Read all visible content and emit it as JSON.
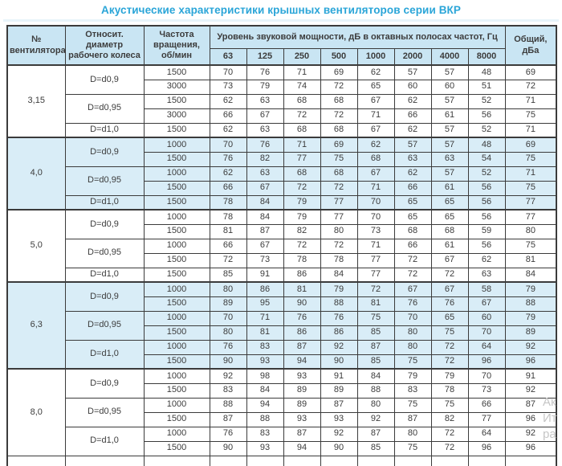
{
  "title": "Акустические характеристики крышных вентиляторов серии ВКР",
  "colors": {
    "title_accent": "#2aa5d8",
    "header_bg": "#c9e5f3",
    "shaded_row_bg": "#d9edf7",
    "border": "#3b3b3b",
    "text": "#3c3c3c"
  },
  "table": {
    "headers": {
      "fan_number": "№ вентилятора",
      "diameter": "Относит. диаметр рабочего колеса",
      "speed": "Частота вращения, об/мин",
      "spl_group": "Уровень звуковой мощности, дБ в октавных полосах частот, Гц",
      "octave_bands": [
        "63",
        "125",
        "250",
        "500",
        "1000",
        "2000",
        "4000",
        "8000"
      ],
      "total": "Общий, дБа"
    },
    "groups": [
      {
        "fan": "3,15",
        "shaded": false,
        "blocks": [
          {
            "diameter": "D=d0,9",
            "rows": [
              {
                "speed": "1500",
                "levels": [
                  70,
                  76,
                  71,
                  69,
                  62,
                  57,
                  57,
                  48
                ],
                "total": 69
              },
              {
                "speed": "3000",
                "levels": [
                  73,
                  79,
                  74,
                  72,
                  65,
                  60,
                  60,
                  51
                ],
                "total": 72
              }
            ]
          },
          {
            "diameter": "D=d0,95",
            "rows": [
              {
                "speed": "1500",
                "levels": [
                  62,
                  63,
                  68,
                  68,
                  67,
                  62,
                  57,
                  52
                ],
                "total": 71
              },
              {
                "speed": "3000",
                "levels": [
                  66,
                  67,
                  72,
                  72,
                  71,
                  66,
                  61,
                  56
                ],
                "total": 75
              }
            ]
          },
          {
            "diameter": "D=d1,0",
            "rows": [
              {
                "speed": "1500",
                "levels": [
                  62,
                  63,
                  68,
                  68,
                  67,
                  62,
                  57,
                  52
                ],
                "total": 71
              }
            ]
          }
        ]
      },
      {
        "fan": "4,0",
        "shaded": true,
        "blocks": [
          {
            "diameter": "D=d0,9",
            "rows": [
              {
                "speed": "1000",
                "levels": [
                  70,
                  76,
                  71,
                  69,
                  62,
                  57,
                  57,
                  48
                ],
                "total": 69
              },
              {
                "speed": "1500",
                "levels": [
                  76,
                  82,
                  77,
                  75,
                  68,
                  63,
                  63,
                  54
                ],
                "total": 75
              }
            ]
          },
          {
            "diameter": "D=d0,95",
            "rows": [
              {
                "speed": "1000",
                "levels": [
                  62,
                  63,
                  68,
                  68,
                  67,
                  62,
                  57,
                  52
                ],
                "total": 71
              },
              {
                "speed": "1500",
                "levels": [
                  66,
                  67,
                  72,
                  72,
                  71,
                  66,
                  61,
                  56
                ],
                "total": 75
              }
            ]
          },
          {
            "diameter": "D=d1,0",
            "rows": [
              {
                "speed": "1500",
                "levels": [
                  78,
                  84,
                  79,
                  77,
                  70,
                  65,
                  65,
                  56
                ],
                "total": 77
              }
            ]
          }
        ]
      },
      {
        "fan": "5,0",
        "shaded": false,
        "blocks": [
          {
            "diameter": "D=d0,9",
            "rows": [
              {
                "speed": "1000",
                "levels": [
                  78,
                  84,
                  79,
                  77,
                  70,
                  65,
                  65,
                  56
                ],
                "total": 77
              },
              {
                "speed": "1500",
                "levels": [
                  81,
                  87,
                  82,
                  80,
                  73,
                  68,
                  68,
                  59
                ],
                "total": 80
              }
            ]
          },
          {
            "diameter": "D=d0,95",
            "rows": [
              {
                "speed": "1000",
                "levels": [
                  66,
                  67,
                  72,
                  72,
                  71,
                  66,
                  61,
                  56
                ],
                "total": 75
              },
              {
                "speed": "1500",
                "levels": [
                  72,
                  73,
                  78,
                  78,
                  77,
                  72,
                  67,
                  62
                ],
                "total": 81
              }
            ]
          },
          {
            "diameter": "D=d1,0",
            "rows": [
              {
                "speed": "1500",
                "levels": [
                  85,
                  91,
                  86,
                  84,
                  77,
                  72,
                  72,
                  63
                ],
                "total": 84
              }
            ]
          }
        ]
      },
      {
        "fan": "6,3",
        "shaded": true,
        "blocks": [
          {
            "diameter": "D=d0,9",
            "rows": [
              {
                "speed": "1000",
                "levels": [
                  80,
                  86,
                  81,
                  79,
                  72,
                  67,
                  67,
                  58
                ],
                "total": 79
              },
              {
                "speed": "1500",
                "levels": [
                  89,
                  95,
                  90,
                  88,
                  81,
                  76,
                  76,
                  67
                ],
                "total": 88
              }
            ]
          },
          {
            "diameter": "D=d0,95",
            "rows": [
              {
                "speed": "1000",
                "levels": [
                  70,
                  71,
                  76,
                  76,
                  75,
                  70,
                  65,
                  60
                ],
                "total": 79
              },
              {
                "speed": "1500",
                "levels": [
                  80,
                  81,
                  86,
                  86,
                  85,
                  80,
                  75,
                  70
                ],
                "total": 89
              }
            ]
          },
          {
            "diameter": "D=d1,0",
            "rows": [
              {
                "speed": "1000",
                "levels": [
                  76,
                  83,
                  87,
                  92,
                  87,
                  80,
                  72,
                  64
                ],
                "total": 92
              },
              {
                "speed": "1500",
                "levels": [
                  90,
                  93,
                  94,
                  90,
                  85,
                  75,
                  72,
                  96
                ],
                "total": 96
              }
            ]
          }
        ]
      },
      {
        "fan": "8,0",
        "shaded": false,
        "blocks": [
          {
            "diameter": "D=d0,9",
            "rows": [
              {
                "speed": "1000",
                "levels": [
                  92,
                  98,
                  93,
                  91,
                  84,
                  79,
                  79,
                  70
                ],
                "total": 91
              },
              {
                "speed": "1500",
                "levels": [
                  83,
                  84,
                  89,
                  89,
                  88,
                  83,
                  78,
                  73
                ],
                "total": 92
              }
            ]
          },
          {
            "diameter": "D=d0,95",
            "rows": [
              {
                "speed": "1000",
                "levels": [
                  88,
                  94,
                  89,
                  87,
                  80,
                  75,
                  75,
                  66
                ],
                "total": 87
              },
              {
                "speed": "1500",
                "levels": [
                  87,
                  88,
                  93,
                  93,
                  92,
                  87,
                  82,
                  77
                ],
                "total": 96
              }
            ]
          },
          {
            "diameter": "D=d1,0",
            "rows": [
              {
                "speed": "1000",
                "levels": [
                  76,
                  83,
                  87,
                  92,
                  87,
                  80,
                  72,
                  64
                ],
                "total": 92
              },
              {
                "speed": "1500",
                "levels": [
                  90,
                  93,
                  94,
                  90,
                  85,
                  75,
                  72,
                  96
                ],
                "total": 96
              }
            ]
          }
        ]
      }
    ]
  },
  "watermark": {
    "lines": [
      "Ак",
      "Ит",
      "ра"
    ]
  }
}
